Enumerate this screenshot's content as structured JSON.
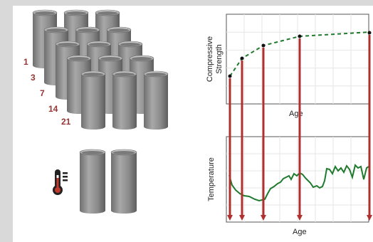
{
  "specimen_ages": [
    "1",
    "3",
    "7",
    "14",
    "21"
  ],
  "icons": {
    "thermometer": "thermometer-icon",
    "cylinder": "concrete-cylinder"
  },
  "colors": {
    "age_labels": "#943634",
    "curing_curve": "#1f7a2e",
    "temperature_curve": "#1f7a2e",
    "arrows": "#b03030",
    "cylinder_fill": "#8c8c8c"
  },
  "strength_chart": {
    "ylabel_line1": "Compressive",
    "ylabel_line2": "Strength",
    "xlabel": "Age"
  },
  "temperature_chart": {
    "ylabel": "Temperature",
    "xlabel": "Age"
  }
}
